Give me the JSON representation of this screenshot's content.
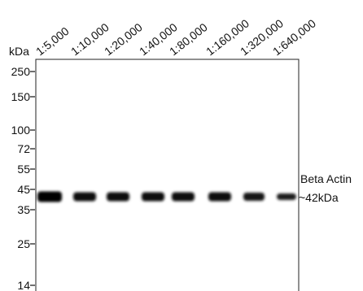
{
  "blot": {
    "unit_label": "kDa",
    "lanes": [
      "1:5,000",
      "1:10,000",
      "1:20,000",
      "1:40,000",
      "1:80,000",
      "1:160,000",
      "1:320,000",
      "1:640,000"
    ],
    "markers": [
      "250",
      "150",
      "100",
      "72",
      "55",
      "45",
      "35",
      "25",
      "14"
    ],
    "target": "Beta Actin",
    "size": "~42kDa"
  }
}
